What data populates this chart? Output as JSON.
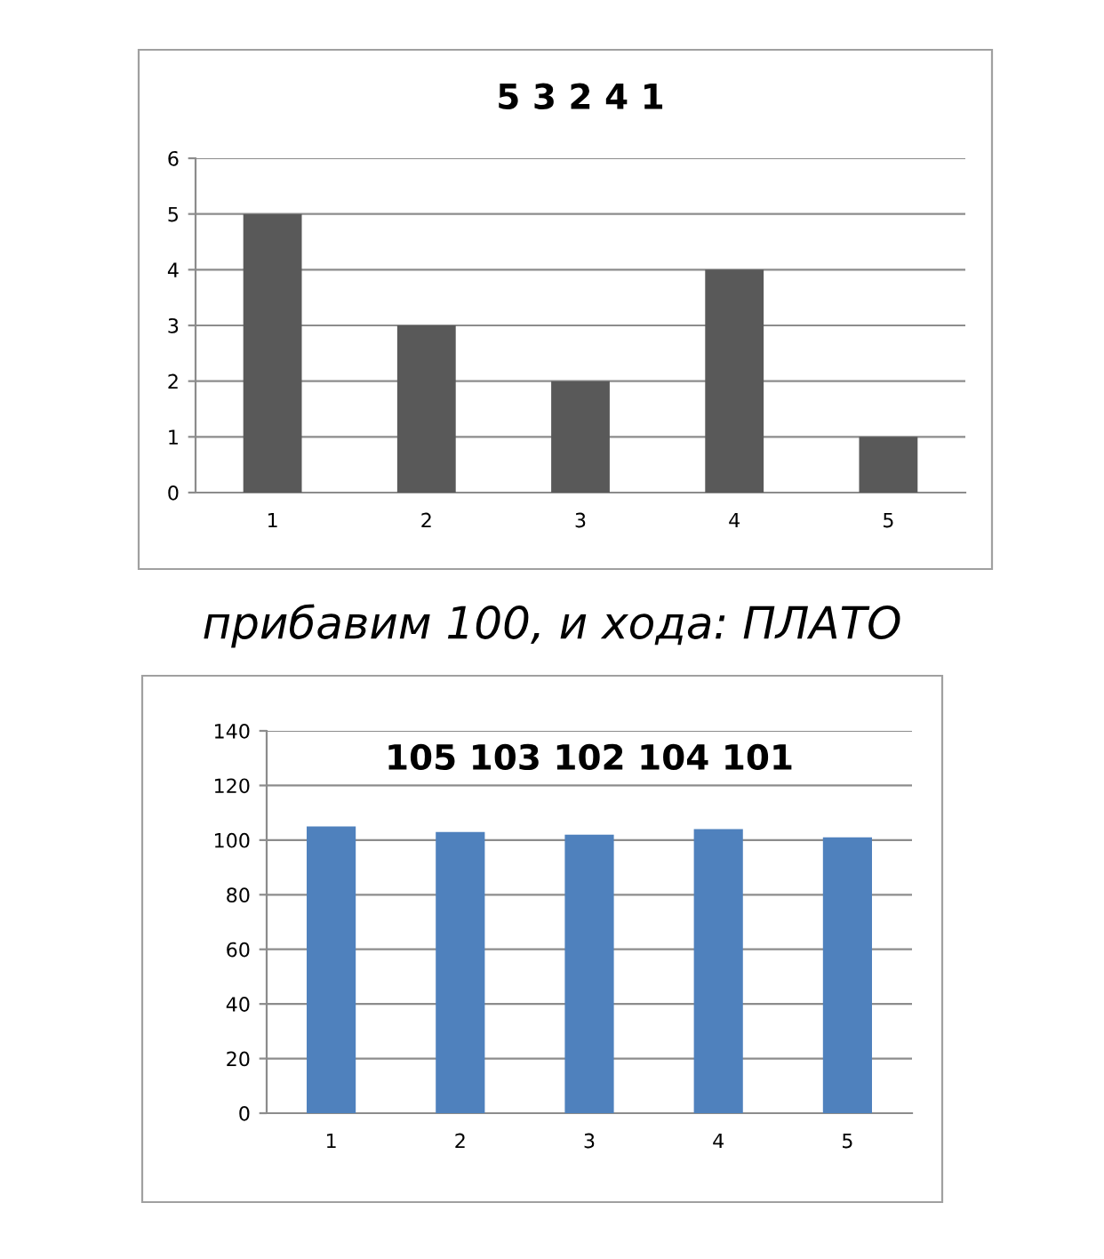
{
  "chart_data": [
    {
      "type": "bar",
      "title": "5 3 2 4 1",
      "categories": [
        "1",
        "2",
        "3",
        "4",
        "5"
      ],
      "values": [
        5,
        3,
        2,
        4,
        1
      ],
      "color": "#595959",
      "ylim": [
        0,
        6
      ],
      "yticks": [
        0,
        1,
        2,
        3,
        4,
        5,
        6
      ],
      "grid": "y",
      "legend": false,
      "annotations": [
        "прибавим 100, и хода: ПЛАТО"
      ]
    },
    {
      "type": "bar",
      "title": "105 103 102 104 101",
      "categories": [
        "1",
        "2",
        "3",
        "4",
        "5"
      ],
      "values": [
        105,
        103,
        102,
        104,
        101
      ],
      "color": "#4f81bd",
      "ylim": [
        0,
        140
      ],
      "yticks": [
        0,
        20,
        40,
        60,
        80,
        100,
        120,
        140
      ],
      "grid": "y",
      "legend": false
    }
  ]
}
